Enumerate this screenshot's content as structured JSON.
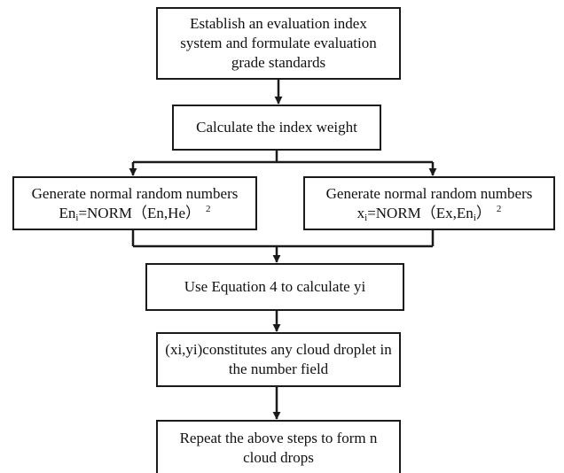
{
  "flowchart": {
    "nodes": [
      {
        "id": "establish",
        "lines": [
          "Establish an evaluation index",
          "system and formulate evaluation",
          "grade standards"
        ]
      },
      {
        "id": "weight",
        "lines": [
          "Calculate the index weight"
        ]
      },
      {
        "id": "en-random",
        "title": "Generate normal random numbers",
        "formula": {
          "var": "En",
          "sub": "i",
          "expr": "=NORM（En,He）",
          "sup": "2"
        }
      },
      {
        "id": "x-random",
        "title": "Generate normal random numbers",
        "formula": {
          "var": "x",
          "sub": "i",
          "expr_pre": "=NORM（Ex,En",
          "expr_sub": "i",
          "expr_post": "）",
          "sup": "2"
        }
      },
      {
        "id": "equation",
        "lines": [
          "Use Equation 4 to calculate yi"
        ]
      },
      {
        "id": "droplet",
        "lines": [
          "(xi,yi)constitutes any cloud droplet in",
          "the number field"
        ]
      },
      {
        "id": "repeat",
        "lines": [
          "Repeat the above steps to form n",
          "cloud drops"
        ]
      }
    ],
    "edges": [
      {
        "from": "establish",
        "to": "weight"
      },
      {
        "from": "weight",
        "to": "en-random"
      },
      {
        "from": "weight",
        "to": "x-random"
      },
      {
        "from": "en-random",
        "to": "equation"
      },
      {
        "from": "x-random",
        "to": "equation"
      },
      {
        "from": "equation",
        "to": "droplet"
      },
      {
        "from": "droplet",
        "to": "repeat"
      }
    ]
  }
}
